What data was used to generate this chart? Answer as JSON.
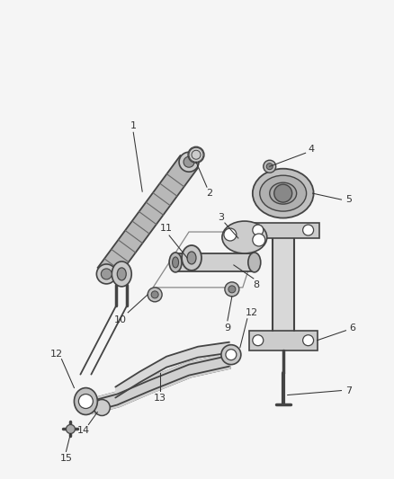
{
  "bg_color": "#f5f5f5",
  "line_color": "#444444",
  "label_color": "#222222",
  "fig_width": 4.38,
  "fig_height": 5.33,
  "dpi": 100
}
